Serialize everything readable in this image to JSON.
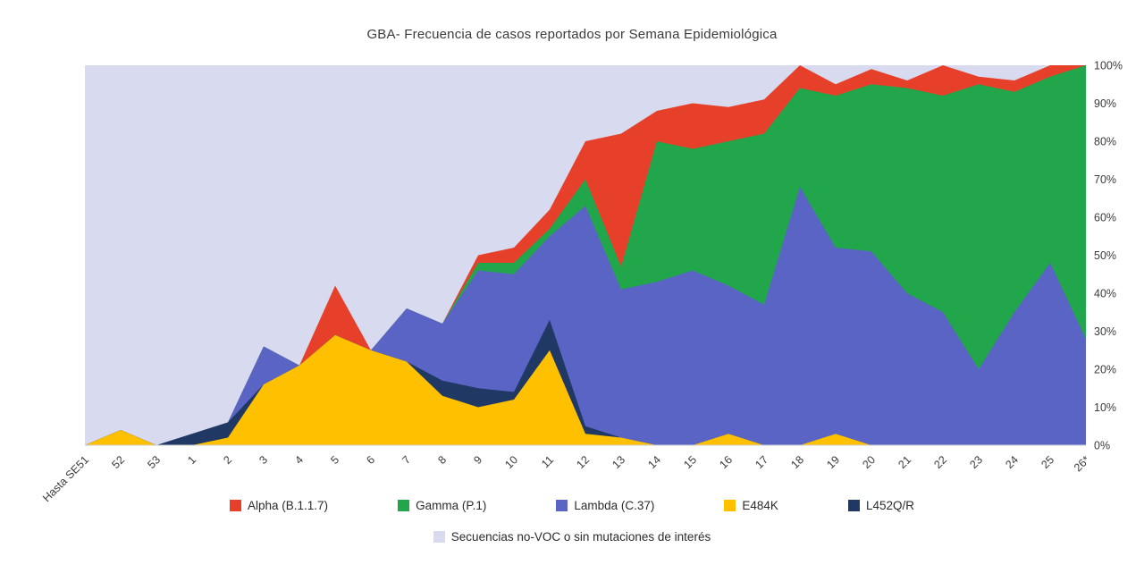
{
  "chart_data": {
    "type": "area",
    "stacked": true,
    "percent_stacked": true,
    "title": "GBA- Frecuencia de casos reportados por Semana Epidemiológica",
    "xlabel": "",
    "ylabel": "",
    "ylim": [
      0,
      100
    ],
    "grid": false,
    "legend_position": "bottom",
    "y_axis_side": "right",
    "y_ticks": [
      "0%",
      "10%",
      "20%",
      "30%",
      "40%",
      "50%",
      "60%",
      "70%",
      "80%",
      "90%",
      "100%"
    ],
    "categories": [
      "Hasta SE51",
      "52",
      "53",
      "1",
      "2",
      "3",
      "4",
      "5",
      "6",
      "7",
      "8",
      "9",
      "10",
      "11",
      "12",
      "13",
      "14",
      "15",
      "16",
      "17",
      "18",
      "19",
      "20",
      "21",
      "22",
      "23",
      "24",
      "25",
      "26*"
    ],
    "series": [
      {
        "name": "E484K",
        "color": "#ffc000",
        "values": [
          0,
          4,
          0,
          0,
          2,
          16,
          21,
          29,
          25,
          22,
          13,
          10,
          12,
          25,
          3,
          2,
          0,
          0,
          3,
          0,
          0,
          3,
          0,
          0,
          0,
          0,
          0,
          0,
          0
        ]
      },
      {
        "name": "L452Q/R",
        "color": "#1f3864",
        "values": [
          0,
          0,
          0,
          3,
          4,
          0,
          0,
          0,
          0,
          0,
          4,
          5,
          2,
          8,
          2,
          0,
          0,
          0,
          0,
          0,
          0,
          0,
          0,
          0,
          0,
          0,
          0,
          0,
          0
        ]
      },
      {
        "name": "Lambda (C.37)",
        "color": "#5a64c4",
        "values": [
          0,
          0,
          0,
          0,
          0,
          10,
          0,
          0,
          0,
          14,
          15,
          31,
          31,
          22,
          58,
          39,
          43,
          46,
          39,
          37,
          68,
          49,
          51,
          40,
          35,
          20,
          35,
          48,
          28
        ]
      },
      {
        "name": "Gamma (P.1)",
        "color": "#21a64c",
        "values": [
          0,
          0,
          0,
          0,
          0,
          0,
          0,
          0,
          0,
          0,
          0,
          2,
          3,
          2,
          7,
          6,
          37,
          32,
          38,
          45,
          26,
          40,
          44,
          54,
          57,
          75,
          58,
          49,
          72
        ]
      },
      {
        "name": "Alpha (B.1.1.7)",
        "color": "#e6402a",
        "values": [
          0,
          0,
          0,
          0,
          0,
          0,
          0,
          13,
          0,
          0,
          0,
          2,
          4,
          5,
          10,
          35,
          8,
          12,
          9,
          9,
          6,
          3,
          4,
          2,
          8,
          2,
          3,
          3,
          0
        ]
      }
    ],
    "background_series": {
      "name": "Secuencias no-VOC o sin mutaciones de interés",
      "color": "#d8dbef"
    },
    "legend_row1": [
      "Alpha (B.1.1.7)",
      "Gamma (P.1)",
      "Lambda (C.37)",
      "E484K",
      "L452Q/R"
    ],
    "legend_row2": [
      "Secuencias no-VOC o sin mutaciones de interés"
    ]
  }
}
